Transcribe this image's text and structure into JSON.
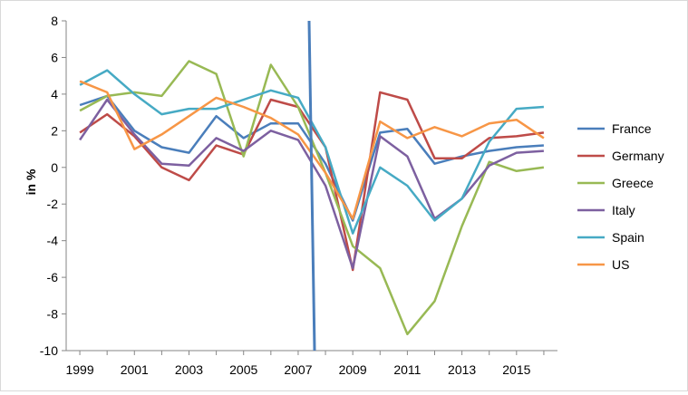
{
  "chart_data": {
    "type": "line",
    "title": "",
    "xlabel": "",
    "ylabel": "in %",
    "ylim": [
      -10,
      8
    ],
    "yticks": [
      -10,
      -8,
      -6,
      -4,
      -2,
      0,
      2,
      4,
      6,
      8
    ],
    "xlim": [
      1998.5,
      2016.5
    ],
    "xticks": [
      1999,
      2001,
      2003,
      2005,
      2007,
      2009,
      2011,
      2013,
      2015
    ],
    "grid": false,
    "legend": "right",
    "x": [
      1999,
      2000,
      2001,
      2002,
      2003,
      2004,
      2005,
      2006,
      2007,
      2008,
      2009,
      2010,
      2011,
      2012,
      2013,
      2014,
      2015,
      2016
    ],
    "series": [
      {
        "name": "France",
        "color": "#4a7ebb",
        "values": [
          3.4,
          3.9,
          2.0,
          1.1,
          0.8,
          2.8,
          1.6,
          2.4,
          2.4,
          0.2,
          -2.9,
          1.9,
          2.1,
          0.2,
          0.6,
          0.9,
          1.1,
          1.2
        ]
      },
      {
        "name": "Germany",
        "color": "#be4b48",
        "values": [
          1.9,
          2.9,
          1.7,
          0.0,
          -0.7,
          1.2,
          0.7,
          3.7,
          3.3,
          1.1,
          -5.6,
          4.1,
          3.7,
          0.5,
          0.5,
          1.6,
          1.7,
          1.9
        ]
      },
      {
        "name": "Greece",
        "color": "#98b954",
        "values": [
          3.1,
          3.9,
          4.1,
          3.9,
          5.8,
          5.1,
          0.6,
          5.6,
          3.3,
          -0.3,
          -4.3,
          -5.5,
          -9.1,
          -7.3,
          -3.2,
          0.3,
          -0.2,
          0.0
        ]
      },
      {
        "name": "Italy",
        "color": "#7d60a0",
        "values": [
          1.5,
          3.7,
          1.8,
          0.2,
          0.1,
          1.6,
          0.9,
          2.0,
          1.5,
          -1.0,
          -5.5,
          1.7,
          0.6,
          -2.8,
          -1.7,
          0.1,
          0.8,
          0.9
        ]
      },
      {
        "name": "Spain",
        "color": "#46aac4",
        "values": [
          4.5,
          5.3,
          4.0,
          2.9,
          3.2,
          3.2,
          3.7,
          4.2,
          3.8,
          1.1,
          -3.6,
          0.0,
          -1.0,
          -2.9,
          -1.7,
          1.4,
          3.2,
          3.3
        ]
      },
      {
        "name": "US",
        "color": "#f79646",
        "values": [
          4.7,
          4.1,
          1.0,
          1.8,
          2.8,
          3.8,
          3.3,
          2.7,
          1.8,
          -0.3,
          -2.8,
          2.5,
          1.6,
          2.2,
          1.7,
          2.4,
          2.6,
          1.6
        ]
      }
    ],
    "annotations": [
      {
        "type": "vertical-line",
        "color": "#4a7ebb",
        "x_start": 2007.4,
        "y_start": 8,
        "x_end": 2007.6,
        "y_end": -10
      }
    ]
  }
}
